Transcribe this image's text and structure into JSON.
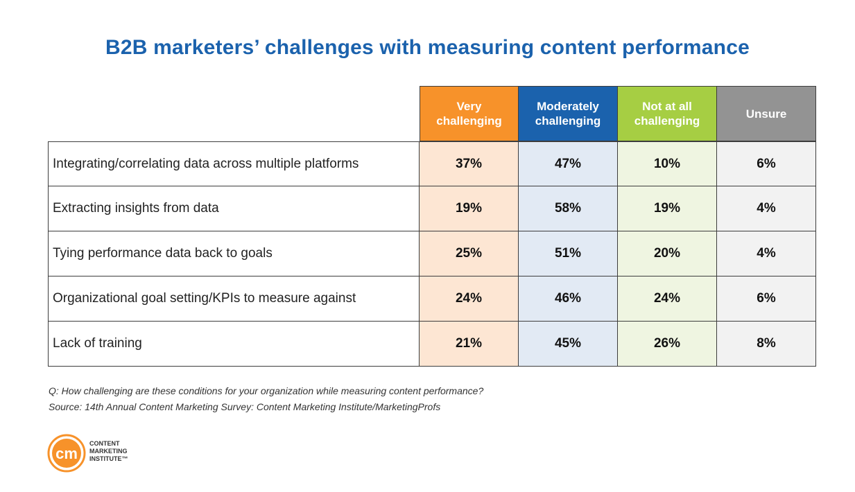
{
  "title": "B2B marketers’ challenges with measuring content performance",
  "chart_data": {
    "type": "table",
    "columns": [
      {
        "label": "Very challenging",
        "header_color": "#f7922a",
        "cell_color": "#fde6d3"
      },
      {
        "label": "Moderately challenging",
        "header_color": "#1b62ad",
        "cell_color": "#e2eaf4"
      },
      {
        "label": "Not at all challenging",
        "header_color": "#a6ce43",
        "cell_color": "#eff5e1"
      },
      {
        "label": "Unsure",
        "header_color": "#939393",
        "cell_color": "#f2f2f2"
      }
    ],
    "rows": [
      {
        "label": "Integrating/correlating data across multiple platforms",
        "values": [
          "37%",
          "47%",
          "10%",
          "6%"
        ]
      },
      {
        "label": "Extracting insights from data",
        "values": [
          "19%",
          "58%",
          "19%",
          "4%"
        ]
      },
      {
        "label": "Tying performance data back to goals",
        "values": [
          "25%",
          "51%",
          "20%",
          "4%"
        ]
      },
      {
        "label": "Organizational goal setting/KPIs to measure against",
        "values": [
          "24%",
          "46%",
          "24%",
          "6%"
        ]
      },
      {
        "label": "Lack of training",
        "values": [
          "21%",
          "45%",
          "26%",
          "8%"
        ]
      }
    ]
  },
  "notes": {
    "question": "Q: How challenging are these conditions for your organization while measuring content performance?",
    "source": "Source: 14th Annual Content Marketing Survey: Content Marketing Institute/MarketingProfs"
  },
  "logo": {
    "mark": "cm",
    "lines": [
      "CONTENT",
      "MARKETING",
      "INSTITUTE™"
    ],
    "color": "#f7922a"
  }
}
